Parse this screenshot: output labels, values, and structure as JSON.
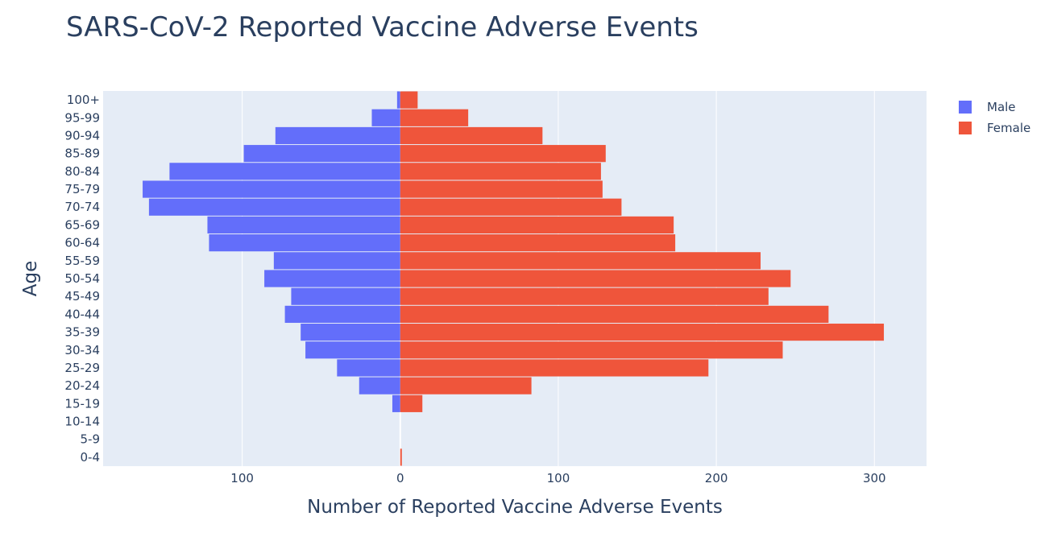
{
  "chart_data": {
    "type": "bar",
    "orientation": "horizontal",
    "title": "SARS-CoV-2 Reported Vaccine Adverse Events",
    "xlabel": "Number of Reported Vaccine Adverse Events",
    "ylabel": "Age",
    "categories": [
      "0-4",
      "5-9",
      "10-14",
      "15-19",
      "20-24",
      "25-29",
      "30-34",
      "35-39",
      "40-44",
      "45-49",
      "50-54",
      "55-59",
      "60-64",
      "65-69",
      "70-74",
      "75-79",
      "80-84",
      "85-89",
      "90-94",
      "95-99",
      "100+"
    ],
    "series": [
      {
        "name": "Male",
        "color": "#636efa",
        "direction": "left",
        "values": [
          0,
          0,
          0,
          5,
          26,
          40,
          60,
          63,
          73,
          69,
          86,
          80,
          121,
          122,
          159,
          163,
          146,
          99,
          79,
          18,
          2
        ]
      },
      {
        "name": "Female",
        "color": "#ef553b",
        "direction": "right",
        "values": [
          1,
          0,
          0,
          14,
          83,
          195,
          242,
          306,
          271,
          233,
          247,
          228,
          174,
          173,
          140,
          128,
          127,
          130,
          90,
          43,
          11
        ]
      }
    ],
    "xlim": [
      -188,
      333
    ],
    "xticks": [
      -100,
      0,
      100,
      200,
      300
    ],
    "xtick_labels": [
      "100",
      "0",
      "100",
      "200",
      "300"
    ],
    "grid": true,
    "legend_position": "top-right",
    "plot_bgcolor": "#e5ecf6"
  }
}
